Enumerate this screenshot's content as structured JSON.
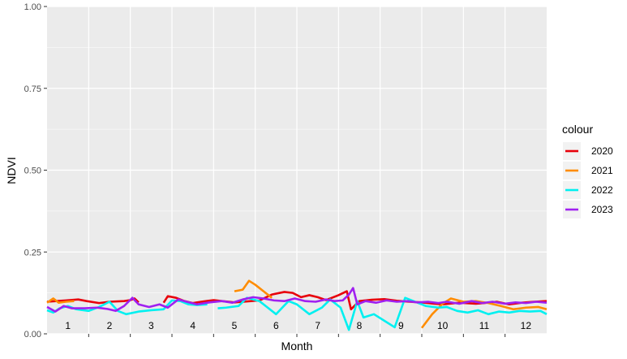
{
  "chart_data": {
    "type": "line",
    "xlabel": "Month",
    "ylabel": "NDVI",
    "ylim": [
      0,
      1
    ],
    "y_ticks": [
      0,
      0.25,
      0.5,
      0.75,
      1
    ],
    "y_tick_labels": [
      "0.00",
      "0.25",
      "0.50",
      "0.75",
      "1.00"
    ],
    "x_range": [
      0.5,
      12.5
    ],
    "months": [
      "1",
      "2",
      "3",
      "4",
      "5",
      "6",
      "7",
      "8",
      "9",
      "10",
      "11",
      "12"
    ],
    "grid": true,
    "legend": {
      "title": "colour",
      "position": "right"
    },
    "series": [
      {
        "name": "2020",
        "color": "#e8000b",
        "segments": [
          [
            [
              0.5,
              0.098
            ],
            [
              0.72,
              0.1
            ],
            [
              0.95,
              0.102
            ],
            [
              1.25,
              0.105
            ],
            [
              1.45,
              0.1
            ],
            [
              1.75,
              0.094
            ],
            [
              2.0,
              0.098
            ],
            [
              2.35,
              0.1
            ],
            [
              2.5,
              0.103
            ],
            [
              2.6,
              0.108
            ],
            [
              2.7,
              0.096
            ]
          ],
          [
            [
              3.3,
              0.095
            ],
            [
              3.4,
              0.115
            ],
            [
              3.6,
              0.11
            ],
            [
              3.8,
              0.1
            ],
            [
              4.0,
              0.094
            ],
            [
              4.2,
              0.098
            ],
            [
              4.5,
              0.103
            ],
            [
              4.7,
              0.1
            ],
            [
              5.0,
              0.096
            ],
            [
              5.4,
              0.1
            ],
            [
              5.6,
              0.102
            ],
            [
              5.9,
              0.12
            ],
            [
              6.2,
              0.128
            ],
            [
              6.4,
              0.125
            ],
            [
              6.6,
              0.112
            ],
            [
              6.8,
              0.118
            ],
            [
              7.0,
              0.112
            ],
            [
              7.2,
              0.103
            ],
            [
              7.5,
              0.118
            ],
            [
              7.7,
              0.13
            ],
            [
              7.8,
              0.075
            ],
            [
              8.0,
              0.1
            ],
            [
              8.3,
              0.104
            ],
            [
              8.6,
              0.106
            ],
            [
              8.9,
              0.101
            ],
            [
              9.2,
              0.098
            ],
            [
              9.5,
              0.096
            ],
            [
              9.8,
              0.092
            ],
            [
              10.0,
              0.09
            ],
            [
              10.4,
              0.095
            ],
            [
              10.8,
              0.092
            ],
            [
              11.0,
              0.094
            ],
            [
              11.3,
              0.098
            ],
            [
              11.6,
              0.09
            ],
            [
              11.9,
              0.095
            ],
            [
              12.2,
              0.098
            ],
            [
              12.5,
              0.1
            ]
          ]
        ]
      },
      {
        "name": "2021",
        "color": "#ff8c00",
        "segments": [
          [
            [
              0.5,
              0.095
            ],
            [
              0.65,
              0.108
            ],
            [
              0.78,
              0.095
            ],
            [
              0.95,
              0.098
            ],
            [
              1.15,
              0.1
            ]
          ],
          [
            [
              5.0,
              0.13
            ],
            [
              5.2,
              0.135
            ],
            [
              5.35,
              0.162
            ],
            [
              5.5,
              0.15
            ],
            [
              5.7,
              0.13
            ],
            [
              5.9,
              0.11
            ]
          ],
          [
            [
              9.5,
              0.018
            ],
            [
              9.75,
              0.06
            ],
            [
              10.0,
              0.092
            ],
            [
              10.2,
              0.108
            ],
            [
              10.5,
              0.098
            ],
            [
              10.8,
              0.1
            ],
            [
              11.1,
              0.094
            ],
            [
              11.4,
              0.085
            ],
            [
              11.7,
              0.075
            ],
            [
              12.0,
              0.08
            ],
            [
              12.3,
              0.082
            ],
            [
              12.5,
              0.075
            ]
          ]
        ]
      },
      {
        "name": "2022",
        "color": "#00f0f0",
        "segments": [
          [
            [
              0.5,
              0.072
            ],
            [
              0.65,
              0.065
            ],
            [
              0.8,
              0.078
            ],
            [
              1.0,
              0.085
            ],
            [
              1.2,
              0.075
            ],
            [
              1.5,
              0.07
            ],
            [
              1.75,
              0.082
            ],
            [
              2.0,
              0.098
            ],
            [
              2.2,
              0.07
            ],
            [
              2.4,
              0.06
            ],
            [
              2.7,
              0.068
            ],
            [
              3.0,
              0.072
            ],
            [
              3.3,
              0.075
            ],
            [
              3.5,
              0.102
            ],
            [
              3.7,
              0.1
            ],
            [
              3.9,
              0.09
            ],
            [
              4.1,
              0.088
            ],
            [
              4.35,
              0.09
            ]
          ],
          [
            [
              4.6,
              0.078
            ],
            [
              4.8,
              0.08
            ],
            [
              5.1,
              0.085
            ],
            [
              5.3,
              0.11
            ],
            [
              5.6,
              0.1
            ],
            [
              5.8,
              0.08
            ],
            [
              6.0,
              0.06
            ],
            [
              6.3,
              0.1
            ],
            [
              6.5,
              0.09
            ],
            [
              6.8,
              0.06
            ],
            [
              7.1,
              0.08
            ],
            [
              7.3,
              0.105
            ],
            [
              7.55,
              0.08
            ],
            [
              7.75,
              0.012
            ],
            [
              7.95,
              0.1
            ],
            [
              8.1,
              0.05
            ],
            [
              8.35,
              0.06
            ],
            [
              8.6,
              0.04
            ],
            [
              8.85,
              0.02
            ],
            [
              9.1,
              0.11
            ],
            [
              9.3,
              0.1
            ],
            [
              9.6,
              0.085
            ],
            [
              9.9,
              0.08
            ],
            [
              10.1,
              0.082
            ],
            [
              10.35,
              0.07
            ],
            [
              10.6,
              0.065
            ],
            [
              10.85,
              0.072
            ],
            [
              11.1,
              0.06
            ],
            [
              11.35,
              0.068
            ],
            [
              11.6,
              0.065
            ],
            [
              11.85,
              0.07
            ],
            [
              12.1,
              0.068
            ],
            [
              12.35,
              0.07
            ],
            [
              12.5,
              0.06
            ]
          ]
        ]
      },
      {
        "name": "2023",
        "color": "#a020f0",
        "segments": [
          [
            [
              0.5,
              0.082
            ],
            [
              0.7,
              0.068
            ],
            [
              0.9,
              0.085
            ],
            [
              1.1,
              0.078
            ],
            [
              1.4,
              0.078
            ],
            [
              1.7,
              0.08
            ],
            [
              1.95,
              0.076
            ],
            [
              2.15,
              0.07
            ],
            [
              2.35,
              0.085
            ],
            [
              2.55,
              0.11
            ],
            [
              2.7,
              0.09
            ],
            [
              2.95,
              0.082
            ],
            [
              3.2,
              0.09
            ],
            [
              3.4,
              0.08
            ],
            [
              3.65,
              0.105
            ],
            [
              3.85,
              0.098
            ],
            [
              4.1,
              0.09
            ],
            [
              4.4,
              0.096
            ],
            [
              4.7,
              0.1
            ],
            [
              4.95,
              0.095
            ],
            [
              5.2,
              0.105
            ],
            [
              5.45,
              0.112
            ],
            [
              5.7,
              0.108
            ],
            [
              5.95,
              0.102
            ],
            [
              6.2,
              0.1
            ],
            [
              6.45,
              0.108
            ],
            [
              6.7,
              0.1
            ],
            [
              6.95,
              0.098
            ],
            [
              7.2,
              0.105
            ],
            [
              7.4,
              0.1
            ],
            [
              7.6,
              0.102
            ],
            [
              7.75,
              0.12
            ],
            [
              7.85,
              0.14
            ],
            [
              7.95,
              0.09
            ],
            [
              8.15,
              0.1
            ],
            [
              8.4,
              0.095
            ],
            [
              8.65,
              0.102
            ],
            [
              8.9,
              0.098
            ],
            [
              9.15,
              0.1
            ],
            [
              9.4,
              0.096
            ],
            [
              9.65,
              0.098
            ],
            [
              9.9,
              0.094
            ],
            [
              10.1,
              0.098
            ],
            [
              10.4,
              0.092
            ],
            [
              10.7,
              0.1
            ],
            [
              10.95,
              0.094
            ],
            [
              11.2,
              0.098
            ],
            [
              11.5,
              0.092
            ],
            [
              11.75,
              0.096
            ],
            [
              12.0,
              0.094
            ],
            [
              12.25,
              0.098
            ],
            [
              12.5,
              0.095
            ]
          ]
        ]
      }
    ]
  }
}
